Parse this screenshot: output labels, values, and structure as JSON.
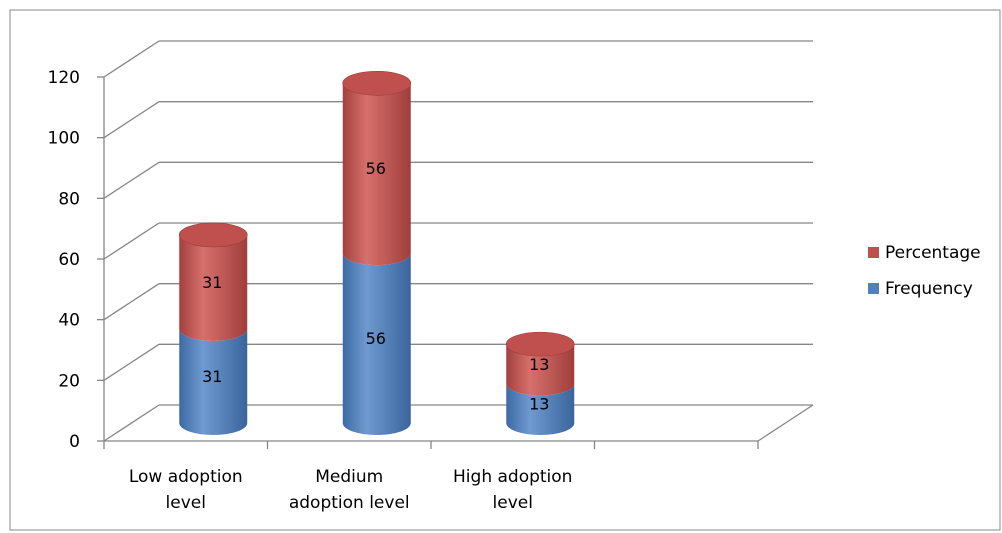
{
  "chart_data": {
    "type": "bar",
    "stacked": true,
    "three_d": true,
    "bar_shape": "cylinder",
    "categories": [
      [
        "Low adoption",
        "level"
      ],
      [
        "Medium",
        "adoption level"
      ],
      [
        "High adoption",
        "level"
      ]
    ],
    "series": [
      {
        "name": "Frequency",
        "color": "#4f81bd",
        "values": [
          31,
          56,
          13
        ]
      },
      {
        "name": "Percentage",
        "color": "#c0504d",
        "values": [
          31,
          56,
          13
        ]
      }
    ],
    "data_labels": true,
    "ylim": [
      0,
      120
    ],
    "yticks": [
      0,
      20,
      40,
      60,
      80,
      100,
      120
    ],
    "grid": true,
    "legend_position": "right",
    "legend_order": [
      "Percentage",
      "Frequency"
    ]
  }
}
